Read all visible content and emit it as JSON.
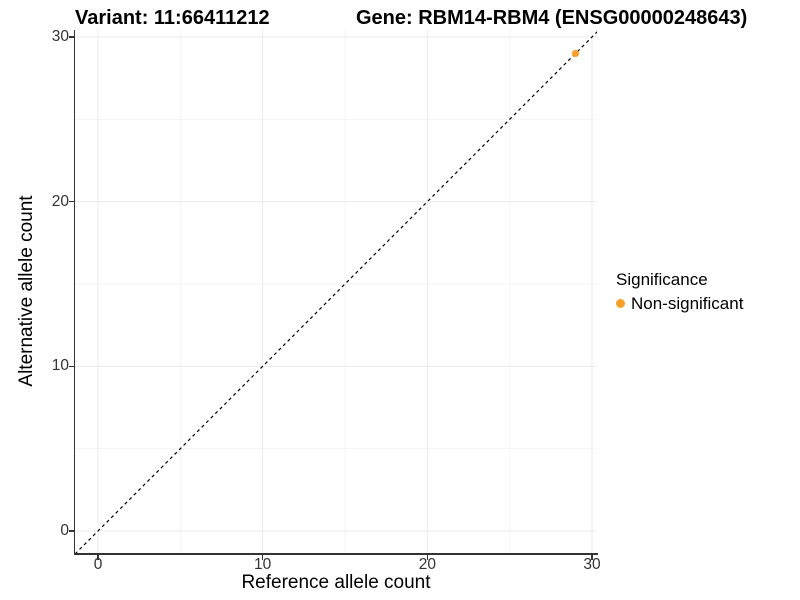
{
  "titles": {
    "variant": "Variant: 11:66411212",
    "gene": "Gene: RBM14-RBM4 (ENSG00000248643)"
  },
  "axes": {
    "x_title": "Reference allele count",
    "y_title": "Alternative allele count"
  },
  "legend": {
    "title": "Significance",
    "items": [
      {
        "label": "Non-significant",
        "color": "#F8A029"
      }
    ]
  },
  "colors": {
    "background": "#FFFFFF",
    "axis_line": "#333333",
    "tick_text": "#333333",
    "grid_major": "#EBEBEB",
    "grid_minor": "#F4F4F4",
    "reference_line": "#000000",
    "point": "#F8A029"
  },
  "chart_data": {
    "type": "scatter",
    "title": "Variant: 11:66411212    Gene: RBM14-RBM4 (ENSG00000248643)",
    "xlabel": "Reference allele count",
    "ylabel": "Alternative allele count",
    "xlim": [
      -1.4,
      30.3
    ],
    "ylim": [
      -1.35,
      30.4
    ],
    "major_ticks": [
      0,
      10,
      20,
      30
    ],
    "minor_gridlines": [
      5,
      15,
      25
    ],
    "grid": true,
    "legend_position": "right",
    "reference_line": {
      "type": "identity",
      "slope": 1,
      "intercept": 0,
      "style": "dashed",
      "color": "#000000"
    },
    "series": [
      {
        "name": "Non-significant",
        "color": "#F8A029",
        "points": [
          {
            "x": 29,
            "y": 29
          }
        ]
      }
    ]
  }
}
